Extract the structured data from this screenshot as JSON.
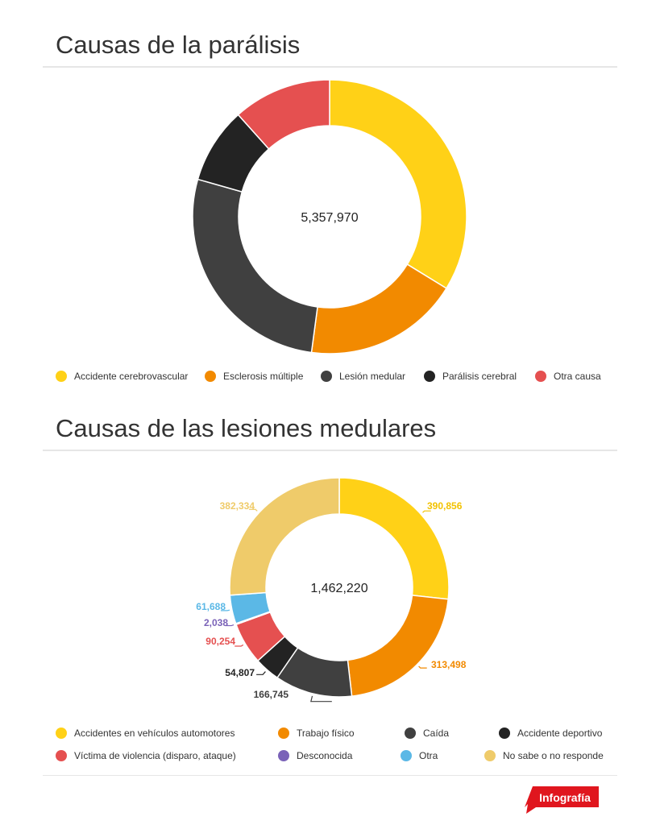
{
  "chart_data": [
    {
      "type": "pie",
      "title": "Causas de la parálisis",
      "total_label": "5,357,970",
      "categories": [
        "Accidente cerebrovascular",
        "Esclerosis múltiple",
        "Lesión medular",
        "Parálisis cerebral",
        "Otra causa"
      ],
      "values": [
        1808435,
        983855,
        1462220,
        480285,
        623175
      ],
      "colors": [
        "#FFD117",
        "#F28A00",
        "#404040",
        "#232323",
        "#E55050"
      ],
      "legend": "bottom",
      "show_slice_labels": false
    },
    {
      "type": "pie",
      "title": "Causas de las lesiones medulares",
      "total_label": "1,462,220",
      "categories": [
        "Accidentes en vehículos automotores",
        "Trabajo físico",
        "Caída",
        "Accidente deportivo",
        "Víctima de violencia (disparo, ataque)",
        "Desconocida",
        "Otra",
        "No sabe o no responde"
      ],
      "values": [
        390856,
        313498,
        166745,
        54807,
        90254,
        2038,
        61688,
        382334
      ],
      "value_labels": [
        "390,856",
        "313,498",
        "166,745",
        "54,807",
        "90,254",
        "2,038",
        "61,688",
        "382,334"
      ],
      "colors": [
        "#FFD117",
        "#F28A00",
        "#404040",
        "#232323",
        "#E55050",
        "#7A62B8",
        "#5BB8E6",
        "#EFCB6A"
      ],
      "label_colors": [
        "#F2C200",
        "#F28A00",
        "#404040",
        "#232323",
        "#E55050",
        "#7A62B8",
        "#5BB8E6",
        "#EFCB6A"
      ],
      "legend": "bottom",
      "show_slice_labels": true
    }
  ],
  "badge": {
    "label": "Infografía",
    "color": "#E0161E"
  }
}
